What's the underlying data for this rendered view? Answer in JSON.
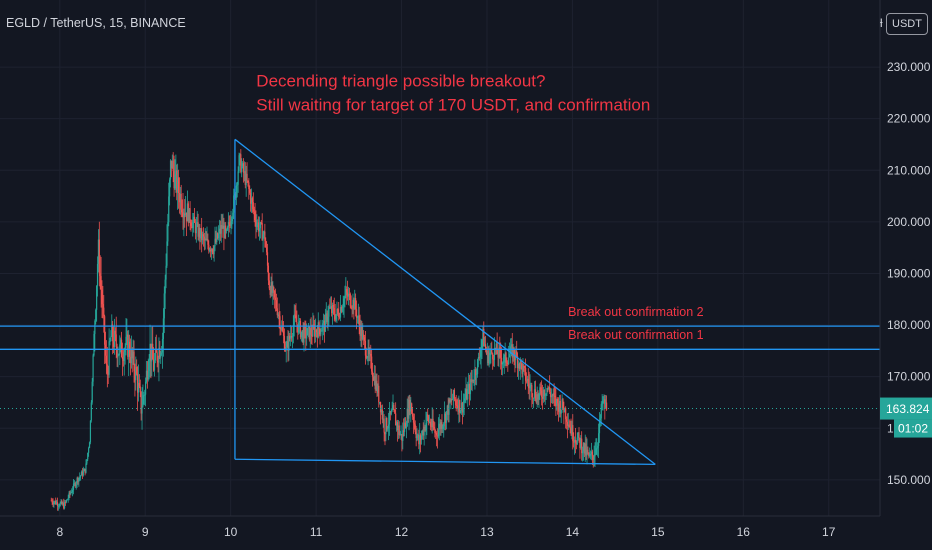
{
  "header": {
    "symbol": "EGLD / TetherUS, 15, BINANCE",
    "currency_badge": "USDT",
    "currency_prefix": "ƚ"
  },
  "colors": {
    "background": "#131722",
    "grid": "#1e2230",
    "candle_up": "#26a69a",
    "candle_down": "#ef5350",
    "drawing": "#2196f3",
    "annotation": "#f23645",
    "axis_text": "#d1d4dc",
    "last_price_bg": "#26a69a"
  },
  "chart_data": {
    "type": "candlestick",
    "title": "EGLD / TetherUS, 15, BINANCE",
    "ylim": [
      143,
      243
    ],
    "y_ticks": [
      150,
      160,
      170,
      180,
      190,
      200,
      210,
      220,
      230
    ],
    "y_tick_labels": [
      "150.000",
      "160.000",
      "170.000",
      "180.000",
      "190.000",
      "200.000",
      "210.000",
      "220.000",
      "230.000"
    ],
    "x_ticks": [
      8,
      9,
      10,
      11,
      12,
      13,
      14,
      15,
      16,
      17
    ],
    "x_tick_labels": [
      "8",
      "9",
      "10",
      "11",
      "12",
      "13",
      "14",
      "15",
      "16",
      "17"
    ],
    "xlim": [
      7.3,
      17.6
    ],
    "last_price": 163.824,
    "last_price_label": "163.824",
    "countdown_label": "01:02",
    "price_path": [
      [
        7.9,
        146
      ],
      [
        8.05,
        145
      ],
      [
        8.2,
        150
      ],
      [
        8.3,
        152
      ],
      [
        8.35,
        158
      ],
      [
        8.4,
        178
      ],
      [
        8.45,
        195
      ],
      [
        8.5,
        183
      ],
      [
        8.55,
        170
      ],
      [
        8.6,
        178
      ],
      [
        8.7,
        175
      ],
      [
        8.8,
        176
      ],
      [
        8.9,
        170
      ],
      [
        8.95,
        164
      ],
      [
        9.0,
        168
      ],
      [
        9.05,
        176
      ],
      [
        9.1,
        172
      ],
      [
        9.15,
        175
      ],
      [
        9.2,
        177
      ],
      [
        9.25,
        195
      ],
      [
        9.3,
        212
      ],
      [
        9.35,
        208
      ],
      [
        9.45,
        203
      ],
      [
        9.55,
        200
      ],
      [
        9.7,
        196
      ],
      [
        9.8,
        195
      ],
      [
        9.9,
        199
      ],
      [
        9.95,
        197
      ],
      [
        10.0,
        201
      ],
      [
        10.05,
        205
      ],
      [
        10.1,
        212
      ],
      [
        10.2,
        207
      ],
      [
        10.3,
        200
      ],
      [
        10.4,
        197
      ],
      [
        10.45,
        188
      ],
      [
        10.55,
        183
      ],
      [
        10.65,
        175
      ],
      [
        10.75,
        181
      ],
      [
        10.85,
        178
      ],
      [
        11.0,
        179
      ],
      [
        11.1,
        180
      ],
      [
        11.15,
        183
      ],
      [
        11.25,
        182
      ],
      [
        11.35,
        186
      ],
      [
        11.45,
        184
      ],
      [
        11.55,
        177
      ],
      [
        11.65,
        172
      ],
      [
        11.75,
        165
      ],
      [
        11.8,
        160
      ],
      [
        11.9,
        163
      ],
      [
        12.0,
        158
      ],
      [
        12.1,
        165
      ],
      [
        12.2,
        157
      ],
      [
        12.3,
        162
      ],
      [
        12.4,
        159
      ],
      [
        12.5,
        162
      ],
      [
        12.6,
        166
      ],
      [
        12.7,
        164
      ],
      [
        12.8,
        168
      ],
      [
        12.9,
        173
      ],
      [
        12.95,
        178
      ],
      [
        13.0,
        174
      ],
      [
        13.1,
        175
      ],
      [
        13.2,
        173
      ],
      [
        13.3,
        175
      ],
      [
        13.4,
        172
      ],
      [
        13.5,
        168
      ],
      [
        13.6,
        166
      ],
      [
        13.7,
        168
      ],
      [
        13.8,
        165
      ],
      [
        13.9,
        164
      ],
      [
        14.0,
        159
      ],
      [
        14.1,
        157
      ],
      [
        14.2,
        154
      ],
      [
        14.25,
        155
      ],
      [
        14.3,
        158
      ],
      [
        14.35,
        165
      ],
      [
        14.4,
        163.8
      ]
    ],
    "drawings": [
      {
        "type": "trendline",
        "name": "triangle-upper",
        "from": [
          10.05,
          216
        ],
        "to": [
          14.97,
          153
        ]
      },
      {
        "type": "trendline",
        "name": "triangle-base",
        "from": [
          10.05,
          154
        ],
        "to": [
          14.97,
          153
        ]
      },
      {
        "type": "trendline",
        "name": "triangle-vertical",
        "from": [
          10.05,
          216
        ],
        "to": [
          10.05,
          154
        ]
      },
      {
        "type": "horizontal",
        "name": "breakout-2-line",
        "y": 179.8
      },
      {
        "type": "horizontal",
        "name": "breakout-1-line",
        "y": 175.3
      }
    ],
    "annotations": [
      {
        "name": "breakout-2-label",
        "text": "Break out confirmation 2",
        "x": 13.95,
        "y": 181.8
      },
      {
        "name": "breakout-1-label",
        "text": "Break out confirmation 1",
        "x": 13.95,
        "y": 177.3
      },
      {
        "name": "note-line-1",
        "text": "Decending triangle possible breakout?",
        "x": 10.3,
        "y": 226.2
      },
      {
        "name": "note-line-2",
        "text": "Still waiting for target of 170 USDT, and confirmation",
        "x": 10.3,
        "y": 221.6
      }
    ]
  }
}
